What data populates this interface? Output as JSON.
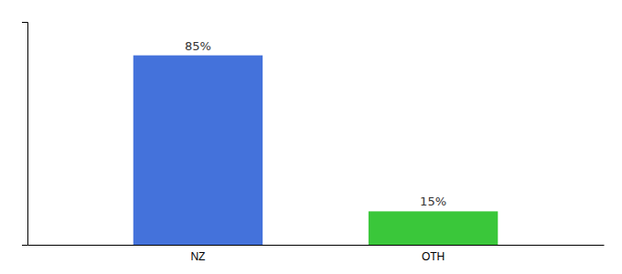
{
  "chart_data": {
    "type": "bar",
    "categories": [
      "NZ",
      "OTH"
    ],
    "values": [
      85,
      15
    ],
    "value_labels": [
      "85%",
      "15%"
    ],
    "colors": [
      "#4472db",
      "#3ac73a"
    ],
    "ylim": [
      0,
      100
    ],
    "yticks": [],
    "data_labels": true,
    "tick_labels": "x"
  }
}
